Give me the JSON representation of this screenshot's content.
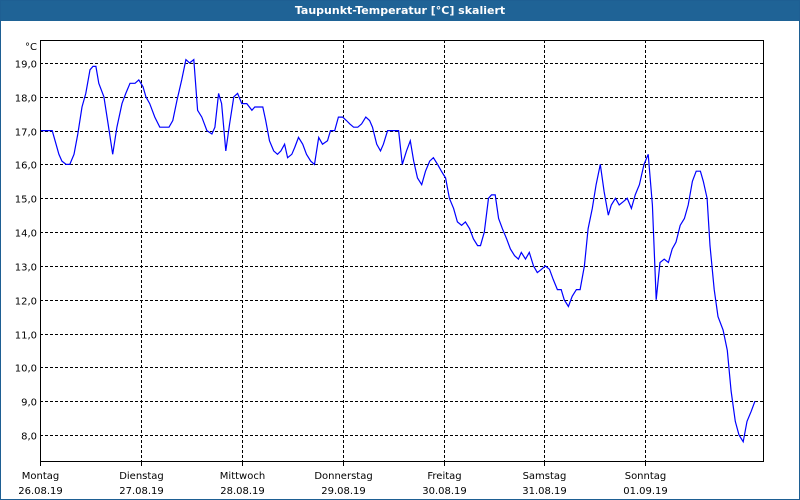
{
  "window": {
    "title": "Taupunkt-Temperatur [°C] skaliert"
  },
  "chart_data": {
    "type": "line",
    "title": "Taupunkt-Temperatur [°C] skaliert",
    "ylabel": "°C",
    "xlabel": "",
    "x_unit": "hours since 26.08.19 00:00",
    "xlim": [
      0,
      172
    ],
    "ylim": [
      7.23,
      19.68
    ],
    "grid": true,
    "y_ticks": [
      19,
      18,
      17,
      16,
      15,
      14,
      13,
      12,
      11,
      10,
      9,
      8
    ],
    "y_tick_labels": [
      "19,0",
      "18,0",
      "17,0",
      "16,0",
      "15,0",
      "14,0",
      "13,0",
      "12,0",
      "11,0",
      "10,0",
      "9,0",
      "8,0"
    ],
    "x_ticks": [
      0,
      24,
      48,
      72,
      96,
      120,
      144
    ],
    "x_tick_labels": [
      {
        "day": "Montag",
        "date": "26.08.19"
      },
      {
        "day": "Dienstag",
        "date": "27.08.19"
      },
      {
        "day": "Mittwoch",
        "date": "28.08.19"
      },
      {
        "day": "Donnerstag",
        "date": "29.08.19"
      },
      {
        "day": "Freitag",
        "date": "30.08.19"
      },
      {
        "day": "Samstag",
        "date": "31.08.19"
      },
      {
        "day": "Sonntag",
        "date": "01.09.19"
      }
    ],
    "series": [
      {
        "name": "Taupunkt",
        "color": "#0000ff",
        "x": [
          0.2,
          1.4,
          2.9,
          3.6,
          4.5,
          5.2,
          6.2,
          7.1,
          8.1,
          9.0,
          10.0,
          10.9,
          11.9,
          12.6,
          13.3,
          14.0,
          15.2,
          16.2,
          17.3,
          18.3,
          19.5,
          20.4,
          21.4,
          22.6,
          23.5,
          24.5,
          25.2,
          26.1,
          27.3,
          28.5,
          29.5,
          30.7,
          31.6,
          32.6,
          33.7,
          34.7,
          35.6,
          36.6,
          37.5,
          38.5,
          39.7,
          40.9,
          41.6,
          42.5,
          43.2,
          44.2,
          45.1,
          46.1,
          47.0,
          48.0,
          49.2,
          50.4,
          51.1,
          52.3,
          53.0,
          53.7,
          54.6,
          55.6,
          56.5,
          57.3,
          58.2,
          58.9,
          59.9,
          60.6,
          61.5,
          62.5,
          63.4,
          64.4,
          65.3,
          66.3,
          67.2,
          68.4,
          69.1,
          70.1,
          71.0,
          72.0,
          72.9,
          73.7,
          74.6,
          75.6,
          76.5,
          77.5,
          78.4,
          79.1,
          80.1,
          81.0,
          81.7,
          82.7,
          83.6,
          84.6,
          85.3,
          86.2,
          87.2,
          88.1,
          88.9,
          89.8,
          90.8,
          91.7,
          92.7,
          93.6,
          94.6,
          95.5,
          96.5,
          97.4,
          98.4,
          99.3,
          100.3,
          101.2,
          102.2,
          103.1,
          104.1,
          104.8,
          105.7,
          106.7,
          107.4,
          108.3,
          109.1,
          110.0,
          111.0,
          111.9,
          112.9,
          113.8,
          114.5,
          115.5,
          116.4,
          117.4,
          118.3,
          119.3,
          120.2,
          121.2,
          122.1,
          123.1,
          124.0,
          124.7,
          125.7,
          126.6,
          127.6,
          128.5,
          129.5,
          130.4,
          131.4,
          132.3,
          133.3,
          134.2,
          135.2,
          135.9,
          136.9,
          137.8,
          138.8,
          139.7,
          140.7,
          141.6,
          142.6,
          143.7,
          144.7,
          145.7,
          146.6,
          147.5,
          148.5,
          149.5,
          150.4,
          151.3,
          152.3,
          153.3,
          154.2,
          155.2,
          156.1,
          157.1,
          157.8,
          158.7,
          159.4,
          160.4,
          161.3,
          162.5,
          163.5,
          164.4,
          165.4,
          166.3,
          167.3,
          168.2,
          169.2,
          170.1
        ],
        "y": [
          17.0,
          17.0,
          17.0,
          16.7,
          16.3,
          16.1,
          16.0,
          16.0,
          16.3,
          16.9,
          17.7,
          18.1,
          18.8,
          18.9,
          18.9,
          18.4,
          18.0,
          17.2,
          16.3,
          17.1,
          17.8,
          18.1,
          18.4,
          18.4,
          18.5,
          18.3,
          18.0,
          17.8,
          17.4,
          17.1,
          17.1,
          17.1,
          17.3,
          17.9,
          18.5,
          19.1,
          19.0,
          19.1,
          17.6,
          17.4,
          17.0,
          16.9,
          17.1,
          18.1,
          17.8,
          16.4,
          17.2,
          18.0,
          18.1,
          17.8,
          17.8,
          17.6,
          17.7,
          17.7,
          17.7,
          17.3,
          16.7,
          16.4,
          16.3,
          16.4,
          16.6,
          16.2,
          16.3,
          16.5,
          16.8,
          16.6,
          16.3,
          16.1,
          16.0,
          16.8,
          16.6,
          16.7,
          17.0,
          17.0,
          17.4,
          17.4,
          17.3,
          17.2,
          17.1,
          17.1,
          17.2,
          17.4,
          17.3,
          17.1,
          16.6,
          16.4,
          16.6,
          17.0,
          17.0,
          17.0,
          17.0,
          16.0,
          16.4,
          16.7,
          16.1,
          15.6,
          15.4,
          15.8,
          16.1,
          16.2,
          16.0,
          15.8,
          15.6,
          15.0,
          14.7,
          14.3,
          14.2,
          14.3,
          14.1,
          13.8,
          13.6,
          13.6,
          14.0,
          15.0,
          15.1,
          15.1,
          14.4,
          14.1,
          13.8,
          13.5,
          13.3,
          13.2,
          13.4,
          13.2,
          13.4,
          13.0,
          12.8,
          12.9,
          13.0,
          12.9,
          12.6,
          12.3,
          12.3,
          12.0,
          11.8,
          12.1,
          12.3,
          12.3,
          13.0,
          14.1,
          14.7,
          15.4,
          16.0,
          15.2,
          14.5,
          14.8,
          15.0,
          14.8,
          14.9,
          15.0,
          14.7,
          15.1,
          15.4,
          16.0,
          16.3,
          14.8,
          12.0,
          13.1,
          13.2,
          13.1,
          13.5,
          13.7,
          14.2,
          14.4,
          14.8,
          15.5,
          15.8,
          15.8,
          15.5,
          15.0,
          13.6,
          12.3,
          11.5,
          11.1,
          10.5,
          9.3,
          8.4,
          8.0,
          7.8,
          8.4,
          8.7,
          9.0
        ]
      }
    ]
  }
}
